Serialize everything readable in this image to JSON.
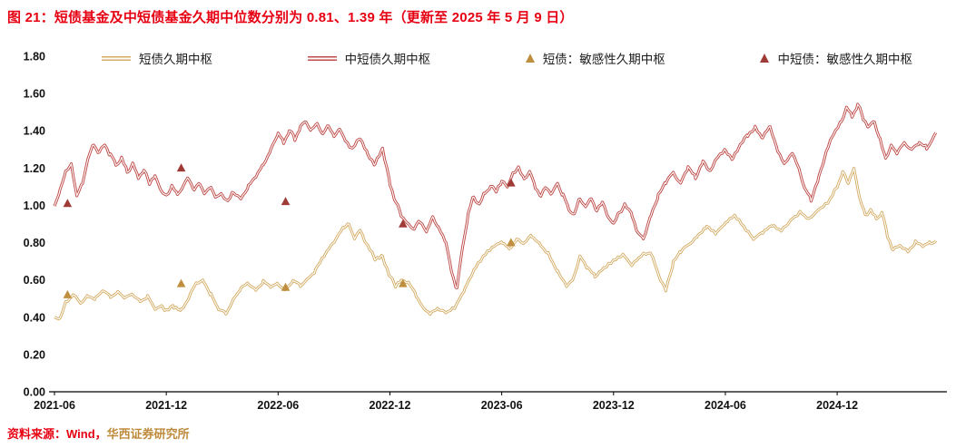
{
  "title": {
    "text": "图 21：短债基金及中短债基金久期中位数分别为 0.81、1.39 年（更新至 2025 年 5 月 9 日）",
    "color": "#E60012"
  },
  "source": {
    "prefix": "资料来源：Wind，",
    "prefix_color": "#E60012",
    "org": "华西证券研究所",
    "org_color": "#BE8A3C"
  },
  "legend": [
    {
      "label": "短债久期中枢",
      "type": "line",
      "color": "#D5AD66"
    },
    {
      "label": "中短债久期中枢",
      "type": "line",
      "color": "#BE4B48"
    },
    {
      "label": "短债：敏感性久期中枢",
      "type": "triangle",
      "color": "#BF8F3F"
    },
    {
      "label": "中短债：敏感性久期中枢",
      "type": "triangle",
      "color": "#9E3B36"
    }
  ],
  "chart_data": {
    "type": "line",
    "title": "短债基金及中短债基金久期中位数",
    "x_unit": "months since 2021-06",
    "x_domain": [
      0,
      47.5
    ],
    "x_tick_months": [
      0,
      6,
      12,
      18,
      24,
      30,
      36,
      42
    ],
    "x_tick_labels": [
      "2021-06",
      "2021-12",
      "2022-06",
      "2022-12",
      "2023-06",
      "2023-12",
      "2024-06",
      "2024-12"
    ],
    "ylim": [
      0,
      1.8
    ],
    "y_tick_step": 0.2,
    "grid": false,
    "legend_position": "top",
    "latest_values": {
      "短债久期中枢": 0.81,
      "中短债久期中枢": 1.39,
      "as_of": "2025-05-09"
    },
    "series": [
      {
        "name": "短债久期中枢",
        "color": "#D5AD66",
        "points": [
          [
            0,
            0.4
          ],
          [
            0.3,
            0.39
          ],
          [
            0.6,
            0.48
          ],
          [
            1,
            0.52
          ],
          [
            1.4,
            0.47
          ],
          [
            1.8,
            0.52
          ],
          [
            2.2,
            0.5
          ],
          [
            2.6,
            0.54
          ],
          [
            3,
            0.51
          ],
          [
            3.4,
            0.54
          ],
          [
            3.8,
            0.5
          ],
          [
            4.2,
            0.52
          ],
          [
            4.6,
            0.49
          ],
          [
            5,
            0.51
          ],
          [
            5.4,
            0.44
          ],
          [
            5.8,
            0.46
          ],
          [
            6,
            0.43
          ],
          [
            6.4,
            0.46
          ],
          [
            6.8,
            0.44
          ],
          [
            7.2,
            0.5
          ],
          [
            7.6,
            0.58
          ],
          [
            8,
            0.6
          ],
          [
            8.4,
            0.52
          ],
          [
            8.8,
            0.44
          ],
          [
            9.2,
            0.42
          ],
          [
            9.6,
            0.5
          ],
          [
            10,
            0.55
          ],
          [
            10.4,
            0.58
          ],
          [
            10.8,
            0.55
          ],
          [
            11.2,
            0.59
          ],
          [
            11.6,
            0.56
          ],
          [
            12,
            0.58
          ],
          [
            12.4,
            0.55
          ],
          [
            12.8,
            0.59
          ],
          [
            13.2,
            0.57
          ],
          [
            13.6,
            0.61
          ],
          [
            14,
            0.65
          ],
          [
            14.5,
            0.73
          ],
          [
            15,
            0.8
          ],
          [
            15.5,
            0.88
          ],
          [
            15.8,
            0.9
          ],
          [
            16.1,
            0.82
          ],
          [
            16.4,
            0.87
          ],
          [
            16.8,
            0.78
          ],
          [
            17.2,
            0.71
          ],
          [
            17.6,
            0.73
          ],
          [
            18,
            0.62
          ],
          [
            18.3,
            0.57
          ],
          [
            18.6,
            0.6
          ],
          [
            19,
            0.58
          ],
          [
            19.4,
            0.52
          ],
          [
            19.8,
            0.45
          ],
          [
            20.2,
            0.42
          ],
          [
            20.6,
            0.44
          ],
          [
            21,
            0.43
          ],
          [
            21.5,
            0.46
          ],
          [
            22,
            0.55
          ],
          [
            22.5,
            0.65
          ],
          [
            23,
            0.72
          ],
          [
            23.5,
            0.77
          ],
          [
            24,
            0.8
          ],
          [
            24.4,
            0.77
          ],
          [
            24.8,
            0.82
          ],
          [
            25.2,
            0.79
          ],
          [
            25.6,
            0.84
          ],
          [
            26,
            0.8
          ],
          [
            26.5,
            0.74
          ],
          [
            27,
            0.64
          ],
          [
            27.5,
            0.56
          ],
          [
            27.8,
            0.6
          ],
          [
            28.2,
            0.73
          ],
          [
            28.6,
            0.66
          ],
          [
            29,
            0.62
          ],
          [
            29.5,
            0.67
          ],
          [
            30,
            0.71
          ],
          [
            30.5,
            0.74
          ],
          [
            31,
            0.68
          ],
          [
            31.5,
            0.73
          ],
          [
            32,
            0.74
          ],
          [
            32.4,
            0.63
          ],
          [
            32.8,
            0.55
          ],
          [
            33.2,
            0.69
          ],
          [
            33.6,
            0.75
          ],
          [
            34,
            0.79
          ],
          [
            34.5,
            0.84
          ],
          [
            35,
            0.89
          ],
          [
            35.5,
            0.85
          ],
          [
            36,
            0.9
          ],
          [
            36.5,
            0.94
          ],
          [
            37,
            0.88
          ],
          [
            37.5,
            0.82
          ],
          [
            38,
            0.86
          ],
          [
            38.5,
            0.9
          ],
          [
            39,
            0.87
          ],
          [
            39.5,
            0.92
          ],
          [
            40,
            0.96
          ],
          [
            40.5,
            0.92
          ],
          [
            41,
            0.97
          ],
          [
            41.5,
            1.01
          ],
          [
            42,
            1.1
          ],
          [
            42.3,
            1.18
          ],
          [
            42.6,
            1.12
          ],
          [
            42.9,
            1.2
          ],
          [
            43.2,
            1.04
          ],
          [
            43.5,
            0.95
          ],
          [
            43.8,
            0.97
          ],
          [
            44.1,
            0.93
          ],
          [
            44.4,
            0.96
          ],
          [
            44.7,
            0.84
          ],
          [
            45,
            0.76
          ],
          [
            45.4,
            0.78
          ],
          [
            45.8,
            0.76
          ],
          [
            46.2,
            0.8
          ],
          [
            46.6,
            0.78
          ],
          [
            47,
            0.8
          ],
          [
            47.3,
            0.81
          ]
        ]
      },
      {
        "name": "中短债久期中枢",
        "color": "#BE4B48",
        "points": [
          [
            0,
            1.0
          ],
          [
            0.3,
            1.08
          ],
          [
            0.6,
            1.18
          ],
          [
            0.9,
            1.22
          ],
          [
            1.2,
            1.05
          ],
          [
            1.5,
            1.12
          ],
          [
            1.8,
            1.25
          ],
          [
            2.1,
            1.33
          ],
          [
            2.4,
            1.28
          ],
          [
            2.7,
            1.33
          ],
          [
            3,
            1.27
          ],
          [
            3.3,
            1.22
          ],
          [
            3.6,
            1.25
          ],
          [
            3.9,
            1.18
          ],
          [
            4.2,
            1.22
          ],
          [
            4.5,
            1.15
          ],
          [
            4.8,
            1.19
          ],
          [
            5.1,
            1.12
          ],
          [
            5.4,
            1.16
          ],
          [
            5.7,
            1.08
          ],
          [
            6,
            1.05
          ],
          [
            6.3,
            1.1
          ],
          [
            6.6,
            1.06
          ],
          [
            6.9,
            1.1
          ],
          [
            7.2,
            1.15
          ],
          [
            7.5,
            1.08
          ],
          [
            7.8,
            1.12
          ],
          [
            8.1,
            1.06
          ],
          [
            8.4,
            1.1
          ],
          [
            8.7,
            1.04
          ],
          [
            9,
            1.06
          ],
          [
            9.3,
            1.02
          ],
          [
            9.6,
            1.07
          ],
          [
            10,
            1.04
          ],
          [
            10.4,
            1.1
          ],
          [
            10.8,
            1.15
          ],
          [
            11.2,
            1.22
          ],
          [
            11.6,
            1.3
          ],
          [
            12,
            1.38
          ],
          [
            12.3,
            1.34
          ],
          [
            12.6,
            1.4
          ],
          [
            12.9,
            1.36
          ],
          [
            13.2,
            1.42
          ],
          [
            13.5,
            1.45
          ],
          [
            13.8,
            1.4
          ],
          [
            14.1,
            1.44
          ],
          [
            14.4,
            1.38
          ],
          [
            14.7,
            1.43
          ],
          [
            15,
            1.37
          ],
          [
            15.3,
            1.41
          ],
          [
            15.6,
            1.35
          ],
          [
            16,
            1.3
          ],
          [
            16.4,
            1.36
          ],
          [
            16.8,
            1.28
          ],
          [
            17.2,
            1.22
          ],
          [
            17.6,
            1.3
          ],
          [
            18,
            1.12
          ],
          [
            18.3,
            1.02
          ],
          [
            18.6,
            0.95
          ],
          [
            19,
            0.9
          ],
          [
            19.3,
            0.87
          ],
          [
            19.6,
            0.92
          ],
          [
            20,
            0.86
          ],
          [
            20.3,
            0.94
          ],
          [
            20.6,
            0.88
          ],
          [
            21,
            0.8
          ],
          [
            21.3,
            0.65
          ],
          [
            21.6,
            0.55
          ],
          [
            21.9,
            0.78
          ],
          [
            22.2,
            0.95
          ],
          [
            22.5,
            1.05
          ],
          [
            22.8,
            1.0
          ],
          [
            23.1,
            1.07
          ],
          [
            23.4,
            1.1
          ],
          [
            23.7,
            1.08
          ],
          [
            24,
            1.13
          ],
          [
            24.3,
            1.1
          ],
          [
            24.6,
            1.17
          ],
          [
            24.9,
            1.2
          ],
          [
            25.2,
            1.14
          ],
          [
            25.5,
            1.18
          ],
          [
            25.8,
            1.1
          ],
          [
            26.1,
            1.05
          ],
          [
            26.4,
            1.1
          ],
          [
            26.7,
            1.06
          ],
          [
            27,
            1.12
          ],
          [
            27.3,
            1.05
          ],
          [
            27.6,
            0.98
          ],
          [
            27.9,
            0.95
          ],
          [
            28.2,
            1.04
          ],
          [
            28.5,
            0.99
          ],
          [
            28.8,
            1.04
          ],
          [
            29.1,
            0.97
          ],
          [
            29.4,
            1.02
          ],
          [
            29.7,
            0.94
          ],
          [
            30,
            0.9
          ],
          [
            30.3,
            0.96
          ],
          [
            30.6,
            1.0
          ],
          [
            31,
            0.95
          ],
          [
            31.3,
            0.85
          ],
          [
            31.6,
            0.82
          ],
          [
            32,
            0.95
          ],
          [
            32.4,
            1.05
          ],
          [
            32.8,
            1.12
          ],
          [
            33.2,
            1.18
          ],
          [
            33.6,
            1.12
          ],
          [
            34,
            1.2
          ],
          [
            34.4,
            1.15
          ],
          [
            34.8,
            1.24
          ],
          [
            35.2,
            1.18
          ],
          [
            35.6,
            1.26
          ],
          [
            36,
            1.3
          ],
          [
            36.4,
            1.25
          ],
          [
            36.8,
            1.32
          ],
          [
            37.2,
            1.38
          ],
          [
            37.6,
            1.42
          ],
          [
            38,
            1.36
          ],
          [
            38.4,
            1.42
          ],
          [
            38.8,
            1.3
          ],
          [
            39.2,
            1.22
          ],
          [
            39.6,
            1.28
          ],
          [
            40,
            1.18
          ],
          [
            40.3,
            1.08
          ],
          [
            40.6,
            1.03
          ],
          [
            41,
            1.15
          ],
          [
            41.4,
            1.28
          ],
          [
            41.8,
            1.38
          ],
          [
            42.2,
            1.45
          ],
          [
            42.5,
            1.52
          ],
          [
            42.8,
            1.48
          ],
          [
            43.1,
            1.54
          ],
          [
            43.4,
            1.47
          ],
          [
            43.7,
            1.42
          ],
          [
            44,
            1.45
          ],
          [
            44.3,
            1.35
          ],
          [
            44.6,
            1.25
          ],
          [
            44.9,
            1.32
          ],
          [
            45.2,
            1.28
          ],
          [
            45.6,
            1.34
          ],
          [
            46,
            1.3
          ],
          [
            46.4,
            1.33
          ],
          [
            46.8,
            1.31
          ],
          [
            47.1,
            1.35
          ],
          [
            47.3,
            1.39
          ]
        ]
      }
    ],
    "markers": [
      {
        "name": "短债：敏感性久期中枢",
        "color": "#BF8F3F",
        "points": [
          [
            0.7,
            0.52
          ],
          [
            6.8,
            0.58
          ],
          [
            12.4,
            0.56
          ],
          [
            18.7,
            0.58
          ],
          [
            24.5,
            0.8
          ]
        ]
      },
      {
        "name": "中短债：敏感性久期中枢",
        "color": "#9E3B36",
        "points": [
          [
            0.7,
            1.01
          ],
          [
            6.8,
            1.2
          ],
          [
            12.4,
            1.02
          ],
          [
            18.7,
            0.9
          ],
          [
            24.5,
            1.12
          ]
        ]
      }
    ]
  }
}
